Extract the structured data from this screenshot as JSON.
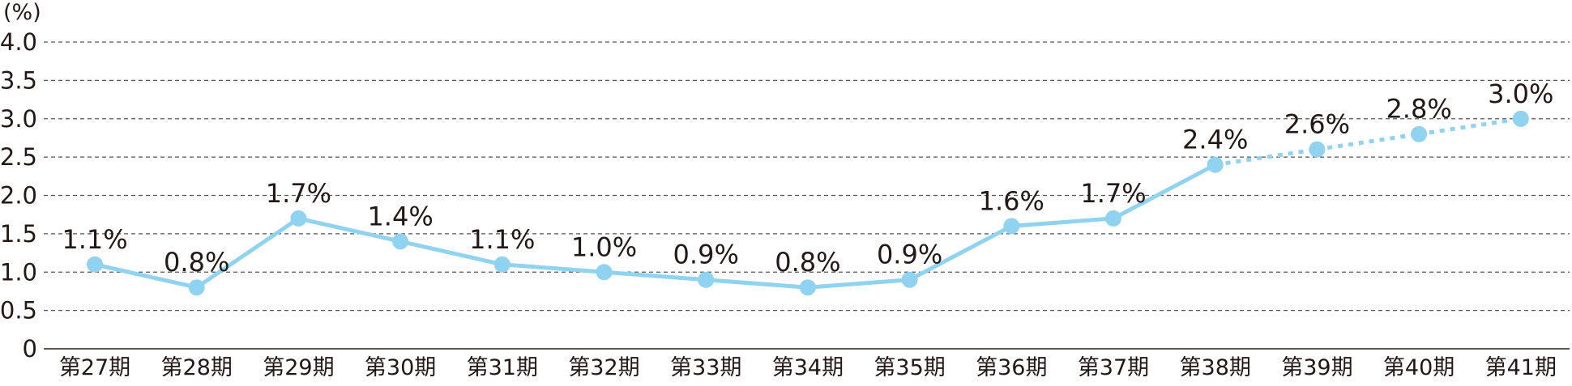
{
  "chart_data": {
    "type": "line",
    "unit_label": "(%)",
    "categories": [
      "第27期",
      "第28期",
      "第29期",
      "第30期",
      "第31期",
      "第32期",
      "第33期",
      "第34期",
      "第35期",
      "第36期",
      "第37期",
      "第38期",
      "第39期",
      "第40期",
      "第41期"
    ],
    "values": [
      1.1,
      0.8,
      1.7,
      1.4,
      1.1,
      1.0,
      0.9,
      0.8,
      0.9,
      1.6,
      1.7,
      2.4,
      2.6,
      2.8,
      3.0
    ],
    "data_labels": [
      "1.1%",
      "0.8%",
      "1.7%",
      "1.4%",
      "1.1%",
      "1.0%",
      "0.9%",
      "0.8%",
      "0.9%",
      "1.6%",
      "1.7%",
      "2.4%",
      "2.6%",
      "2.8%",
      "3.0%"
    ],
    "actual_through_index": 11,
    "projected_style": "dotted",
    "ylim": [
      0,
      4.0
    ],
    "yticks": [
      0,
      0.5,
      1.0,
      1.5,
      2.0,
      2.5,
      3.0,
      3.5,
      4.0
    ],
    "ytick_labels": [
      "0",
      "0.5",
      "1.0",
      "1.5",
      "2.0",
      "2.5",
      "3.0",
      "3.5",
      "4.0"
    ],
    "grid": "horizontal-dashed",
    "legend": "none",
    "colors": {
      "series": "#8FD3F0",
      "grid": "#555555",
      "axis": "#231815",
      "text": "#231815"
    }
  }
}
